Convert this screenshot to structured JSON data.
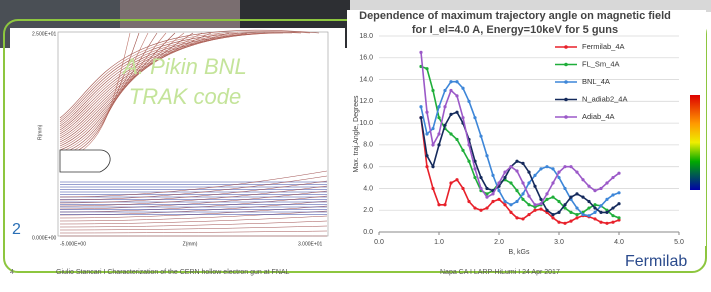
{
  "slide": {
    "overlay_title": "A. Pikin BNL",
    "overlay_subtitle": "TRAK code",
    "trak_ymax": "2.500E+01",
    "trak_ymin": "0.000E+00",
    "trak_xmin": "-5.000E+00",
    "trak_xmax": "3.000E+01",
    "trak_xlabel": "Z(mm)",
    "trak_ylabel": "R(mm)",
    "corner_digit": "2",
    "page_number": "4",
    "footer_left": "Giulio Stancari I Characterization of the CERN hollow electron gun at FNAL",
    "footer_right": "Napa CA I LARP-HiLumi I 24 Apr 2017",
    "logo": "Fermilab"
  },
  "chart_data": {
    "type": "line",
    "title": "Dependence of maximum trajectory angle on magnetic field for I_el=4.0 A, Energy=10keV for 5 guns",
    "x_label": "B, kGs",
    "y_label": "Max. traj.Angle, Degrees",
    "x": [
      0.7,
      0.8,
      0.9,
      1.0,
      1.1,
      1.2,
      1.3,
      1.4,
      1.5,
      1.6,
      1.7,
      1.8,
      1.9,
      2.0,
      2.1,
      2.2,
      2.3,
      2.4,
      2.5,
      2.6,
      2.7,
      2.8,
      2.9,
      3.0,
      3.1,
      3.2,
      3.3,
      3.4,
      3.5,
      3.6,
      3.7,
      3.8,
      3.9,
      4.0
    ],
    "series": [
      {
        "name": "Fermilab_4A",
        "color": "#e8202a",
        "values": [
          10.5,
          6.0,
          4.0,
          2.5,
          2.5,
          4.5,
          4.8,
          4.0,
          2.8,
          2.2,
          2.0,
          2.2,
          2.8,
          3.0,
          2.5,
          1.8,
          1.3,
          1.2,
          1.6,
          2.0,
          2.1,
          1.8,
          1.3,
          0.9,
          0.8,
          1.0,
          1.3,
          1.5,
          1.4,
          1.2,
          0.9,
          0.8,
          0.9,
          1.1
        ]
      },
      {
        "name": "FL_Sm_4A",
        "color": "#1fae3a",
        "values": [
          15.2,
          15.0,
          13.0,
          10.5,
          9.5,
          9.0,
          8.5,
          7.5,
          6.5,
          5.0,
          3.8,
          3.5,
          3.8,
          4.5,
          4.8,
          4.5,
          3.8,
          3.0,
          2.5,
          2.3,
          2.5,
          3.0,
          3.2,
          2.8,
          2.2,
          1.8,
          1.6,
          1.8,
          2.2,
          2.5,
          2.4,
          2.0,
          1.5,
          1.3
        ]
      },
      {
        "name": "BNL_4A",
        "color": "#3d86d8",
        "values": [
          11.5,
          9.0,
          9.5,
          11.5,
          13.0,
          13.8,
          13.8,
          13.2,
          12.0,
          10.5,
          8.8,
          7.0,
          5.2,
          3.8,
          2.8,
          2.5,
          2.8,
          3.5,
          4.5,
          5.2,
          5.8,
          6.0,
          5.8,
          5.0,
          4.0,
          3.0,
          2.2,
          1.6,
          1.5,
          1.8,
          2.4,
          3.0,
          3.4,
          3.6
        ]
      },
      {
        "name": "N_adiab2_4A",
        "color": "#152a5c",
        "values": [
          10.5,
          7.0,
          6.0,
          8.0,
          9.8,
          10.8,
          11.0,
          10.0,
          8.5,
          6.5,
          5.0,
          4.0,
          3.8,
          4.2,
          5.0,
          6.0,
          6.5,
          6.3,
          5.5,
          4.2,
          3.0,
          2.0,
          1.6,
          1.8,
          2.5,
          3.2,
          3.5,
          3.2,
          2.8,
          2.2,
          1.8,
          1.8,
          2.2,
          2.6
        ]
      },
      {
        "name": "Adiab_4A",
        "color": "#9b59c8",
        "values": [
          16.5,
          11.0,
          8.0,
          9.0,
          11.5,
          13.0,
          12.5,
          10.5,
          8.0,
          5.8,
          4.0,
          3.2,
          3.5,
          4.5,
          5.5,
          6.0,
          5.6,
          4.5,
          3.3,
          2.5,
          2.6,
          3.5,
          4.5,
          5.5,
          6.0,
          6.0,
          5.5,
          4.8,
          4.2,
          3.8,
          4.0,
          4.5,
          5.0,
          5.4
        ]
      }
    ],
    "xlim": [
      0,
      5
    ],
    "xticks": [
      {
        "value": 0,
        "label": "0.0"
      },
      {
        "value": 1,
        "label": "1.0"
      },
      {
        "value": 2,
        "label": "2.0"
      },
      {
        "value": 3,
        "label": "3.0"
      },
      {
        "value": 4,
        "label": "4.0"
      },
      {
        "value": 5,
        "label": "5.0"
      }
    ],
    "ylim": [
      0,
      18
    ],
    "yticks": [
      {
        "value": 0,
        "label": "0.0"
      },
      {
        "value": 2,
        "label": "2.0"
      },
      {
        "value": 4,
        "label": "4.0"
      },
      {
        "value": 6,
        "label": "6.0"
      },
      {
        "value": 8,
        "label": "8.0"
      },
      {
        "value": 10,
        "label": "10.0"
      },
      {
        "value": 12,
        "label": "12.0"
      },
      {
        "value": 14,
        "label": "14.0"
      },
      {
        "value": 16,
        "label": "16.0"
      },
      {
        "value": 18,
        "label": "18.0"
      }
    ],
    "grid": true,
    "legend": "top-right"
  }
}
